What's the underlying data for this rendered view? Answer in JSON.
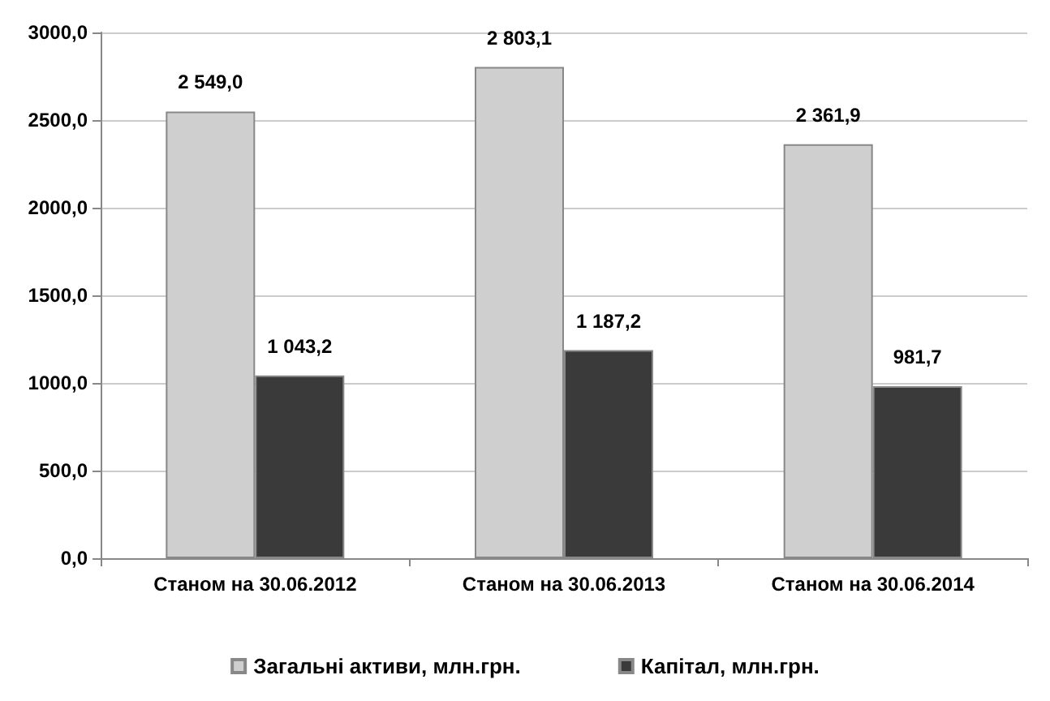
{
  "chart_data": {
    "type": "bar",
    "categories": [
      "Станом на 30.06.2012",
      "Станом на 30.06.2013",
      "Станом на 30.06.2014"
    ],
    "series": [
      {
        "name": "Загальні активи, млн.грн.",
        "color": "#cfcfcf",
        "values": [
          2549.0,
          2803.1,
          2361.9
        ],
        "value_labels": [
          "2 549,0",
          "2 803,1",
          "2 361,9"
        ]
      },
      {
        "name": "Капітал, млн.грн.",
        "color": "#3a3a3a",
        "values": [
          1043.2,
          1187.2,
          981.7
        ],
        "value_labels": [
          "1 043,2",
          "1 187,2",
          "981,7"
        ]
      }
    ],
    "ylim": [
      0,
      3000
    ],
    "yticks": [
      {
        "value": 0,
        "label": "0,0"
      },
      {
        "value": 500,
        "label": "500,0"
      },
      {
        "value": 1000,
        "label": "1000,0"
      },
      {
        "value": 1500,
        "label": "1500,0"
      },
      {
        "value": 2000,
        "label": "2000,0"
      },
      {
        "value": 2500,
        "label": "2500,0"
      },
      {
        "value": 3000,
        "label": "3000,0"
      }
    ],
    "grid": "y",
    "legend": "bottom"
  }
}
